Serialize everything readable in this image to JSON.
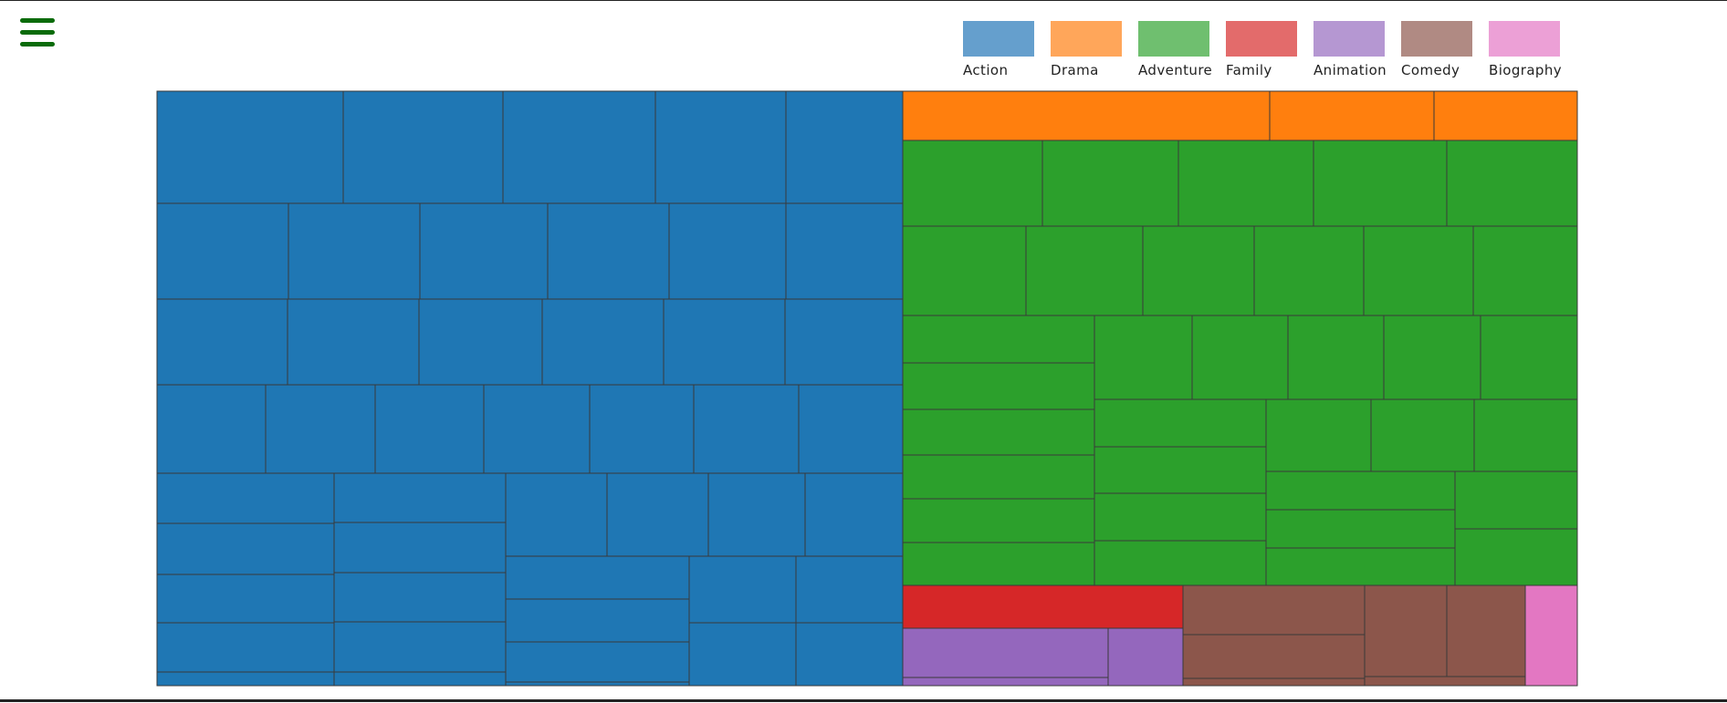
{
  "menu": {
    "icon": "hamburger-menu-icon",
    "color": "#0a6b0a"
  },
  "chart_data": {
    "type": "treemap",
    "title": "",
    "legend": [
      {
        "name": "Action",
        "color": "#1f77b4",
        "swatch": "#659fcd"
      },
      {
        "name": "Drama",
        "color": "#ff7f0e",
        "swatch": "#ffa65a"
      },
      {
        "name": "Adventure",
        "color": "#2ca02c",
        "swatch": "#6fbf6f"
      },
      {
        "name": "Family",
        "color": "#d62728",
        "swatch": "#e36b6b"
      },
      {
        "name": "Animation",
        "color": "#9467bd",
        "swatch": "#b597d2"
      },
      {
        "name": "Comedy",
        "color": "#8c564b",
        "swatch": "#b08a83"
      },
      {
        "name": "Biography",
        "color": "#e377c2",
        "swatch": "#eca0d6"
      }
    ],
    "legend_position": "top-right",
    "categories": [
      {
        "name": "Action",
        "value": 52.5,
        "items": 60
      },
      {
        "name": "Drama",
        "value": 4.5,
        "items": 3
      },
      {
        "name": "Adventure",
        "value": 33.0,
        "items": 42
      },
      {
        "name": "Family",
        "value": 2.0,
        "items": 1
      },
      {
        "name": "Animation",
        "value": 3.0,
        "items": 3
      },
      {
        "name": "Comedy",
        "value": 4.0,
        "items": 6
      },
      {
        "name": "Biography",
        "value": 1.0,
        "items": 1
      }
    ]
  }
}
